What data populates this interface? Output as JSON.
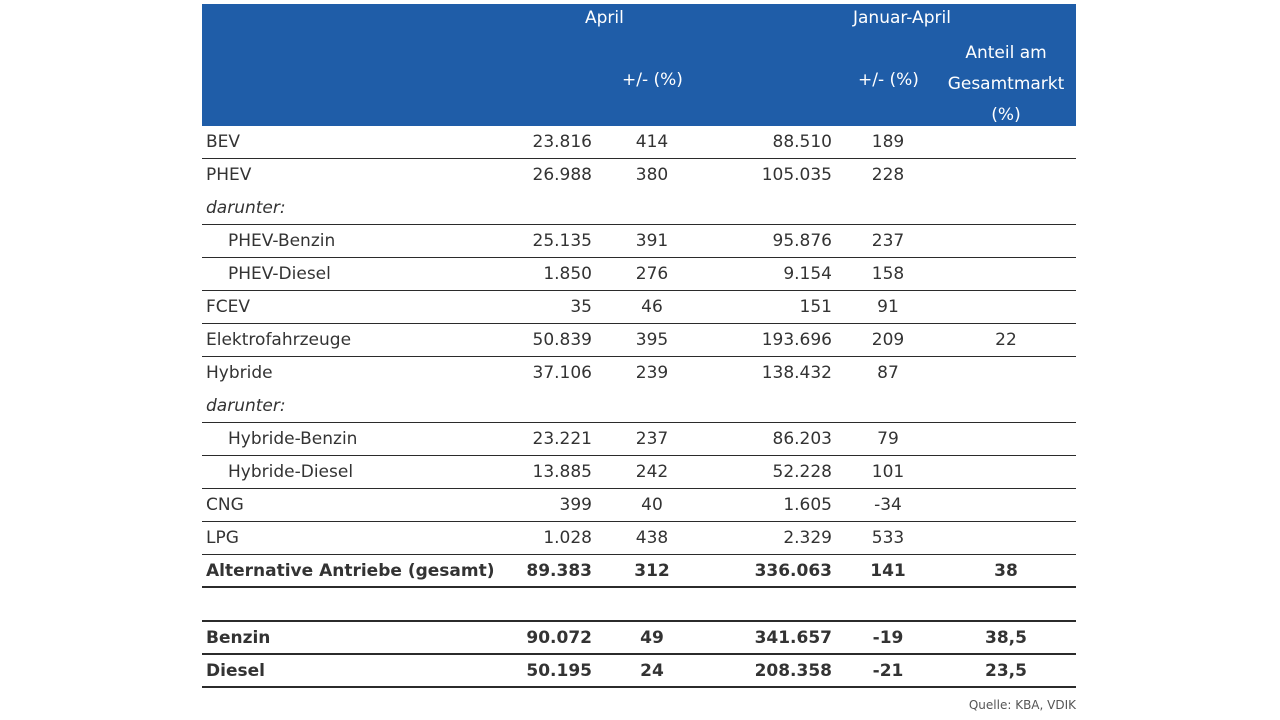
{
  "header": {
    "april": "April",
    "jan_april": "Januar-April",
    "pct_april": "+/- (%)",
    "pct_jan_april": "+/- (%)",
    "share": "Anteil am Gesamtmarkt (%)"
  },
  "rows": [
    {
      "label": "BEV",
      "april": "23.816",
      "april_pct": "414",
      "ja": "88.510",
      "ja_pct": "189",
      "share": ""
    },
    {
      "label": "PHEV",
      "april": "26.988",
      "april_pct": "380",
      "ja": "105.035",
      "ja_pct": "228",
      "share": ""
    },
    {
      "label": "darunter:",
      "april": "",
      "april_pct": "",
      "ja": "",
      "ja_pct": "",
      "share": ""
    },
    {
      "label": "PHEV-Benzin",
      "april": "25.135",
      "april_pct": "391",
      "ja": "95.876",
      "ja_pct": "237",
      "share": ""
    },
    {
      "label": "PHEV-Diesel",
      "april": "1.850",
      "april_pct": "276",
      "ja": "9.154",
      "ja_pct": "158",
      "share": ""
    },
    {
      "label": "FCEV",
      "april": "35",
      "april_pct": "46",
      "ja": "151",
      "ja_pct": "91",
      "share": ""
    },
    {
      "label": "Elektrofahrzeuge",
      "april": "50.839",
      "april_pct": "395",
      "ja": "193.696",
      "ja_pct": "209",
      "share": "22"
    },
    {
      "label": "Hybride",
      "april": "37.106",
      "april_pct": "239",
      "ja": "138.432",
      "ja_pct": "87",
      "share": ""
    },
    {
      "label": "darunter:",
      "april": "",
      "april_pct": "",
      "ja": "",
      "ja_pct": "",
      "share": ""
    },
    {
      "label": "Hybride-Benzin",
      "april": "23.221",
      "april_pct": "237",
      "ja": "86.203",
      "ja_pct": "79",
      "share": ""
    },
    {
      "label": "Hybride-Diesel",
      "april": "13.885",
      "april_pct": "242",
      "ja": "52.228",
      "ja_pct": "101",
      "share": ""
    },
    {
      "label": "CNG",
      "april": "399",
      "april_pct": "40",
      "ja": "1.605",
      "ja_pct": "-34",
      "share": ""
    },
    {
      "label": "LPG",
      "april": "1.028",
      "april_pct": "438",
      "ja": "2.329",
      "ja_pct": "533",
      "share": ""
    },
    {
      "label": "Alternative Antriebe (gesamt)",
      "april": "89.383",
      "april_pct": "312",
      "ja": "336.063",
      "ja_pct": "141",
      "share": "38"
    },
    {
      "label": "Benzin",
      "april": "90.072",
      "april_pct": "49",
      "ja": "341.657",
      "ja_pct": "-19",
      "share": "38,5"
    },
    {
      "label": "Diesel",
      "april": "50.195",
      "april_pct": "24",
      "ja": "208.358",
      "ja_pct": "-21",
      "share": "23,5"
    }
  ],
  "source": "Quelle: KBA, VDIK",
  "colors": {
    "header_bg": "#1f5da8",
    "header_text": "#ffffff"
  }
}
